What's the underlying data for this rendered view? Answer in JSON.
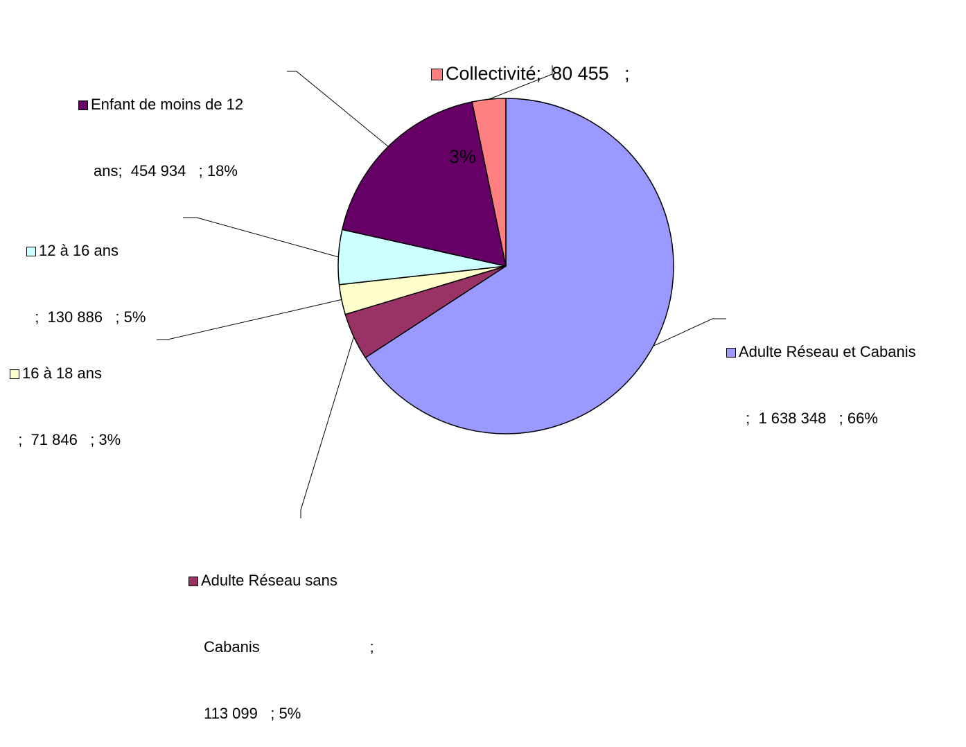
{
  "chart_data": {
    "type": "pie",
    "title": "",
    "slices": [
      {
        "key": "adulte_reseau_cabanis",
        "label": "Adulte Réseau et Cabanis",
        "value": 1638348,
        "value_text": "1 638 348",
        "percent_text": "66%",
        "color": "#9999ff"
      },
      {
        "key": "adulte_reseau_sans",
        "label": "Adulte Réseau sans Cabanis",
        "value": 113099,
        "value_text": "113 099",
        "percent_text": "5%",
        "color": "#993366"
      },
      {
        "key": "ans_16_18",
        "label": "16 à 18 ans",
        "value": 71846,
        "value_text": "71 846",
        "percent_text": "3%",
        "color": "#ffffcc"
      },
      {
        "key": "ans_12_16",
        "label": "12 à 16 ans",
        "value": 130886,
        "value_text": "130 886",
        "percent_text": "5%",
        "color": "#ccffff"
      },
      {
        "key": "enfant",
        "label": "Enfant de moins de 12 ans",
        "value": 454934,
        "value_text": "454 934",
        "percent_text": "18%",
        "color": "#660066"
      },
      {
        "key": "collectivite",
        "label": "Collectivité",
        "value": 80455,
        "value_text": "80 455",
        "percent_text": "3%",
        "color": "#ff8080"
      }
    ]
  },
  "labels": {
    "collectivite": {
      "l1": "Collectivité;  80 455   ;",
      "l2": "3%"
    },
    "enfant": {
      "l1": "Enfant de moins de 12",
      "l2": "ans;  454 934   ; 18%"
    },
    "ans_12_16": {
      "l1": "12 à 16 ans",
      "l2": "  ;  130 886   ; 5%"
    },
    "ans_16_18": {
      "l1": "16 à 18 ans",
      "l2": "  ;  71 846   ; 3%"
    },
    "adulte_reseau_cabanis": {
      "l1": "Adulte Réseau et Cabanis",
      "l2": " ;  1 638 348   ; 66%"
    },
    "adulte_reseau_sans": {
      "l1": "Adulte Réseau sans",
      "l2": "Cabanis                          ;",
      "l3": "113 099   ; 5%"
    }
  }
}
